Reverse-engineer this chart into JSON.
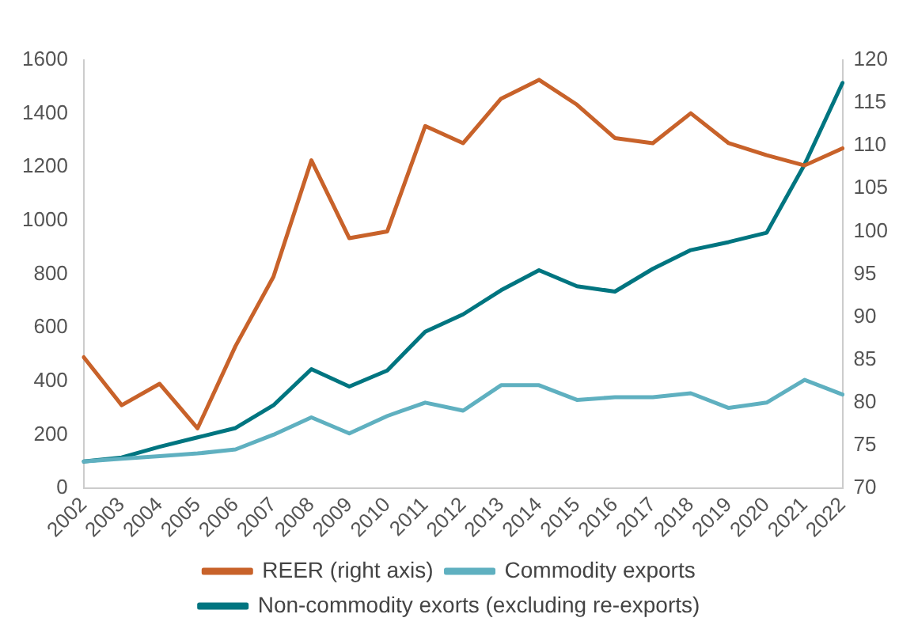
{
  "chart_data": {
    "type": "line",
    "categories": [
      "2002",
      "2003",
      "2004",
      "2005",
      "2006",
      "2007",
      "2008",
      "2009",
      "2010",
      "2011",
      "2012",
      "2013",
      "2014",
      "2015",
      "2016",
      "2017",
      "2018",
      "2019",
      "2020",
      "2021",
      "2022"
    ],
    "series": [
      {
        "name": "REER (right axis)",
        "color": "#c8622a",
        "axis": "y2",
        "values": [
          85.3,
          79.7,
          82.2,
          77,
          86.6,
          94.7,
          108.3,
          99.2,
          100,
          112.3,
          110.3,
          115.5,
          117.7,
          114.8,
          110.9,
          110.3,
          113.8,
          110.3,
          108.9,
          107.7,
          109.7
        ]
      },
      {
        "name": "Commodity exports",
        "color": "#5fb0c0",
        "values": [
          100,
          110,
          120,
          130,
          145,
          200,
          265,
          205,
          270,
          320,
          290,
          385,
          385,
          330,
          340,
          340,
          355,
          300,
          320,
          405,
          350
        ]
      },
      {
        "name": "Non-commodity exorts (excluding re-exports)",
        "color": "#007580",
        "values": [
          100,
          115,
          155,
          190,
          225,
          310,
          445,
          380,
          440,
          585,
          650,
          740,
          815,
          755,
          735,
          820,
          890,
          920,
          955,
          1210,
          1515
        ]
      }
    ],
    "ylim": [
      0,
      1600
    ],
    "yticks": [
      0,
      200,
      400,
      600,
      800,
      1000,
      1200,
      1400,
      1600
    ],
    "y2lim": [
      70,
      120
    ],
    "y2ticks": [
      70,
      75,
      80,
      85,
      90,
      95,
      100,
      105,
      110,
      115,
      120
    ],
    "grid": false,
    "legend": "bottom",
    "marker": "none",
    "line_style": "solid"
  }
}
